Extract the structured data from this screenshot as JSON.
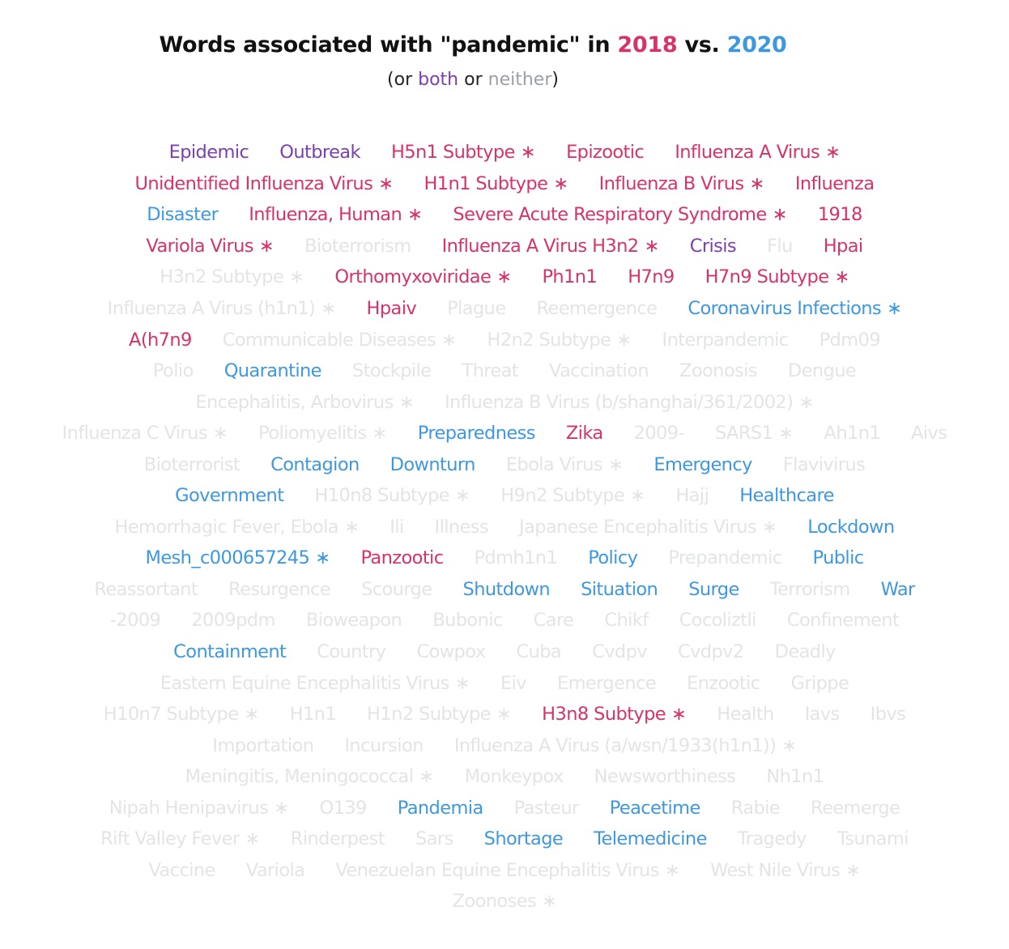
{
  "title": {
    "prefix": "Words associated with \"pandemic\" in ",
    "year_a": "2018",
    "middle": " vs. ",
    "year_b": "2020"
  },
  "subtitle": {
    "open": "(or ",
    "both": "both",
    "or": " or ",
    "neither": "neither",
    "close": ")"
  },
  "colors": {
    "2018": "#d6336c",
    "2020": "#3e98e0",
    "both": "#7c3fb1",
    "neither": "#e3e4e6"
  },
  "mesh_marker": "∗",
  "chart_data": {
    "type": "table",
    "rows": [
      [
        {
          "text": "Epidemic",
          "group": "both"
        },
        {
          "text": "Outbreak",
          "group": "both"
        },
        {
          "text": "H5n1 Subtype",
          "group": "2018",
          "mesh": true
        },
        {
          "text": "Epizootic",
          "group": "2018"
        },
        {
          "text": "Influenza A Virus",
          "group": "2018",
          "mesh": true
        }
      ],
      [
        {
          "text": "Unidentified Influenza Virus",
          "group": "2018",
          "mesh": true
        },
        {
          "text": "H1n1 Subtype",
          "group": "2018",
          "mesh": true
        },
        {
          "text": "Influenza B Virus",
          "group": "2018",
          "mesh": true
        },
        {
          "text": "Influenza",
          "group": "2018"
        }
      ],
      [
        {
          "text": "Disaster",
          "group": "2020"
        },
        {
          "text": "Influenza, Human",
          "group": "2018",
          "mesh": true
        },
        {
          "text": "Severe Acute Respiratory Syndrome",
          "group": "2018",
          "mesh": true
        },
        {
          "text": "1918",
          "group": "2018"
        }
      ],
      [
        {
          "text": "Variola Virus",
          "group": "2018",
          "mesh": true
        },
        {
          "text": "Bioterrorism",
          "group": "neither"
        },
        {
          "text": "Influenza A Virus H3n2",
          "group": "2018",
          "mesh": true
        },
        {
          "text": "Crisis",
          "group": "both"
        },
        {
          "text": "Flu",
          "group": "neither"
        },
        {
          "text": "Hpai",
          "group": "2018"
        }
      ],
      [
        {
          "text": "H3n2 Subtype",
          "group": "neither",
          "mesh": true
        },
        {
          "text": "Orthomyxoviridae",
          "group": "2018",
          "mesh": true
        },
        {
          "text": "Ph1n1",
          "group": "2018"
        },
        {
          "text": "H7n9",
          "group": "2018"
        },
        {
          "text": "H7n9 Subtype",
          "group": "2018",
          "mesh": true
        }
      ],
      [
        {
          "text": "Influenza A Virus (h1n1)",
          "group": "neither",
          "mesh": true
        },
        {
          "text": "Hpaiv",
          "group": "2018"
        },
        {
          "text": "Plague",
          "group": "neither"
        },
        {
          "text": "Reemergence",
          "group": "neither"
        },
        {
          "text": "Coronavirus Infections",
          "group": "2020",
          "mesh": true
        }
      ],
      [
        {
          "text": "A(h7n9",
          "group": "2018"
        },
        {
          "text": "Communicable Diseases",
          "group": "neither",
          "mesh": true
        },
        {
          "text": "H2n2 Subtype",
          "group": "neither",
          "mesh": true
        },
        {
          "text": "Interpandemic",
          "group": "neither"
        },
        {
          "text": "Pdm09",
          "group": "neither"
        }
      ],
      [
        {
          "text": "Polio",
          "group": "neither"
        },
        {
          "text": "Quarantine",
          "group": "2020"
        },
        {
          "text": "Stockpile",
          "group": "neither"
        },
        {
          "text": "Threat",
          "group": "neither"
        },
        {
          "text": "Vaccination",
          "group": "neither"
        },
        {
          "text": "Zoonosis",
          "group": "neither"
        },
        {
          "text": "Dengue",
          "group": "neither"
        }
      ],
      [
        {
          "text": "Encephalitis, Arbovirus",
          "group": "neither",
          "mesh": true
        },
        {
          "text": "Influenza B Virus (b/shanghai/361/2002)",
          "group": "neither",
          "mesh": true
        }
      ],
      [
        {
          "text": "Influenza C Virus",
          "group": "neither",
          "mesh": true
        },
        {
          "text": "Poliomyelitis",
          "group": "neither",
          "mesh": true
        },
        {
          "text": "Preparedness",
          "group": "2020"
        },
        {
          "text": "Zika",
          "group": "2018"
        },
        {
          "text": "2009-",
          "group": "neither"
        },
        {
          "text": "SARS1",
          "group": "neither",
          "mesh": true
        },
        {
          "text": "Ah1n1",
          "group": "neither"
        },
        {
          "text": "Aivs",
          "group": "neither"
        }
      ],
      [
        {
          "text": "Bioterrorist",
          "group": "neither"
        },
        {
          "text": "Contagion",
          "group": "2020"
        },
        {
          "text": "Downturn",
          "group": "2020"
        },
        {
          "text": "Ebola Virus",
          "group": "neither",
          "mesh": true
        },
        {
          "text": "Emergency",
          "group": "2020"
        },
        {
          "text": "Flavivirus",
          "group": "neither"
        }
      ],
      [
        {
          "text": "Government",
          "group": "2020"
        },
        {
          "text": "H10n8 Subtype",
          "group": "neither",
          "mesh": true
        },
        {
          "text": "H9n2 Subtype",
          "group": "neither",
          "mesh": true
        },
        {
          "text": "Hajj",
          "group": "neither"
        },
        {
          "text": "Healthcare",
          "group": "2020"
        }
      ],
      [
        {
          "text": "Hemorrhagic Fever, Ebola",
          "group": "neither",
          "mesh": true
        },
        {
          "text": "Ili",
          "group": "neither"
        },
        {
          "text": "Illness",
          "group": "neither"
        },
        {
          "text": "Japanese Encephalitis Virus",
          "group": "neither",
          "mesh": true
        },
        {
          "text": "Lockdown",
          "group": "2020"
        }
      ],
      [
        {
          "text": "Mesh_c000657245",
          "group": "2020",
          "mesh": true
        },
        {
          "text": "Panzootic",
          "group": "2018"
        },
        {
          "text": "Pdmh1n1",
          "group": "neither"
        },
        {
          "text": "Policy",
          "group": "2020"
        },
        {
          "text": "Prepandemic",
          "group": "neither"
        },
        {
          "text": "Public",
          "group": "2020"
        }
      ],
      [
        {
          "text": "Reassortant",
          "group": "neither"
        },
        {
          "text": "Resurgence",
          "group": "neither"
        },
        {
          "text": "Scourge",
          "group": "neither"
        },
        {
          "text": "Shutdown",
          "group": "2020"
        },
        {
          "text": "Situation",
          "group": "2020"
        },
        {
          "text": "Surge",
          "group": "2020"
        },
        {
          "text": "Terrorism",
          "group": "neither"
        },
        {
          "text": "War",
          "group": "2020"
        }
      ],
      [
        {
          "text": "-2009",
          "group": "neither"
        },
        {
          "text": "2009pdm",
          "group": "neither"
        },
        {
          "text": "Bioweapon",
          "group": "neither"
        },
        {
          "text": "Bubonic",
          "group": "neither"
        },
        {
          "text": "Care",
          "group": "neither"
        },
        {
          "text": "Chikf",
          "group": "neither"
        },
        {
          "text": "Cocoliztli",
          "group": "neither"
        },
        {
          "text": "Confinement",
          "group": "neither"
        }
      ],
      [
        {
          "text": "Containment",
          "group": "2020"
        },
        {
          "text": "Country",
          "group": "neither"
        },
        {
          "text": "Cowpox",
          "group": "neither"
        },
        {
          "text": "Cuba",
          "group": "neither"
        },
        {
          "text": "Cvdpv",
          "group": "neither"
        },
        {
          "text": "Cvdpv2",
          "group": "neither"
        },
        {
          "text": "Deadly",
          "group": "neither"
        }
      ],
      [
        {
          "text": "Eastern Equine Encephalitis Virus",
          "group": "neither",
          "mesh": true
        },
        {
          "text": "Eiv",
          "group": "neither"
        },
        {
          "text": "Emergence",
          "group": "neither"
        },
        {
          "text": "Enzootic",
          "group": "neither"
        },
        {
          "text": "Grippe",
          "group": "neither"
        }
      ],
      [
        {
          "text": "H10n7 Subtype",
          "group": "neither",
          "mesh": true
        },
        {
          "text": "H1n1",
          "group": "neither"
        },
        {
          "text": "H1n2 Subtype",
          "group": "neither",
          "mesh": true
        },
        {
          "text": "H3n8 Subtype",
          "group": "2018",
          "mesh": true
        },
        {
          "text": "Health",
          "group": "neither"
        },
        {
          "text": "Iavs",
          "group": "neither"
        },
        {
          "text": "Ibvs",
          "group": "neither"
        }
      ],
      [
        {
          "text": "Importation",
          "group": "neither"
        },
        {
          "text": "Incursion",
          "group": "neither"
        },
        {
          "text": "Influenza A Virus (a/wsn/1933(h1n1))",
          "group": "neither",
          "mesh": true
        }
      ],
      [
        {
          "text": "Meningitis, Meningococcal",
          "group": "neither",
          "mesh": true
        },
        {
          "text": "Monkeypox",
          "group": "neither"
        },
        {
          "text": "Newsworthiness",
          "group": "neither"
        },
        {
          "text": "Nh1n1",
          "group": "neither"
        }
      ],
      [
        {
          "text": "Nipah Henipavirus",
          "group": "neither",
          "mesh": true
        },
        {
          "text": "O139",
          "group": "neither"
        },
        {
          "text": "Pandemia",
          "group": "2020"
        },
        {
          "text": "Pasteur",
          "group": "neither"
        },
        {
          "text": "Peacetime",
          "group": "2020"
        },
        {
          "text": "Rabie",
          "group": "neither"
        },
        {
          "text": "Reemerge",
          "group": "neither"
        }
      ],
      [
        {
          "text": "Rift Valley Fever",
          "group": "neither",
          "mesh": true
        },
        {
          "text": "Rinderpest",
          "group": "neither"
        },
        {
          "text": "Sars",
          "group": "neither"
        },
        {
          "text": "Shortage",
          "group": "2020"
        },
        {
          "text": "Telemedicine",
          "group": "2020"
        },
        {
          "text": "Tragedy",
          "group": "neither"
        },
        {
          "text": "Tsunami",
          "group": "neither"
        }
      ],
      [
        {
          "text": "Vaccine",
          "group": "neither"
        },
        {
          "text": "Variola",
          "group": "neither"
        },
        {
          "text": "Venezuelan Equine Encephalitis Virus",
          "group": "neither",
          "mesh": true
        },
        {
          "text": "West Nile Virus",
          "group": "neither",
          "mesh": true
        }
      ],
      [
        {
          "text": "Zoonoses",
          "group": "neither",
          "mesh": true
        }
      ]
    ]
  }
}
